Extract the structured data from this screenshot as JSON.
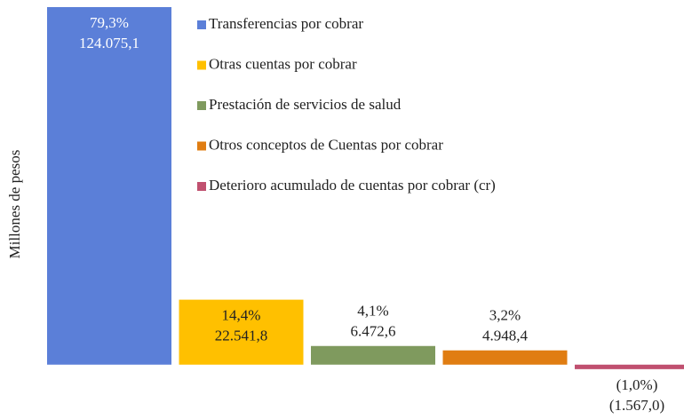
{
  "chart_data": {
    "type": "bar",
    "y_label": "Millones  de pesos",
    "categories": [
      "Transferencias por cobrar",
      "Otras cuentas por cobrar",
      "Prestación de servicios de salud",
      "Otros conceptos de Cuentas por cobrar",
      "Deterioro acumulado de cuentas por cobrar (cr)"
    ],
    "colors": [
      "#5b7fd8",
      "#ffc000",
      "#7f9a5e",
      "#e07d12",
      "#c0506f"
    ],
    "values": [
      124075.1,
      22541.8,
      6472.6,
      4948.4,
      -1567.0
    ],
    "value_labels": [
      "124.075,1",
      "22.541,8",
      "6.472,6",
      "4.948,4",
      "(1.567,0)"
    ],
    "shares": [
      79.3,
      14.4,
      4.1,
      3.2,
      -1.0
    ],
    "share_labels": [
      "79,3%",
      "14,4%",
      "4,1%",
      "3,2%",
      "(1,0%)"
    ],
    "ylim": [
      -5000,
      125000
    ],
    "legend": "top-right"
  }
}
